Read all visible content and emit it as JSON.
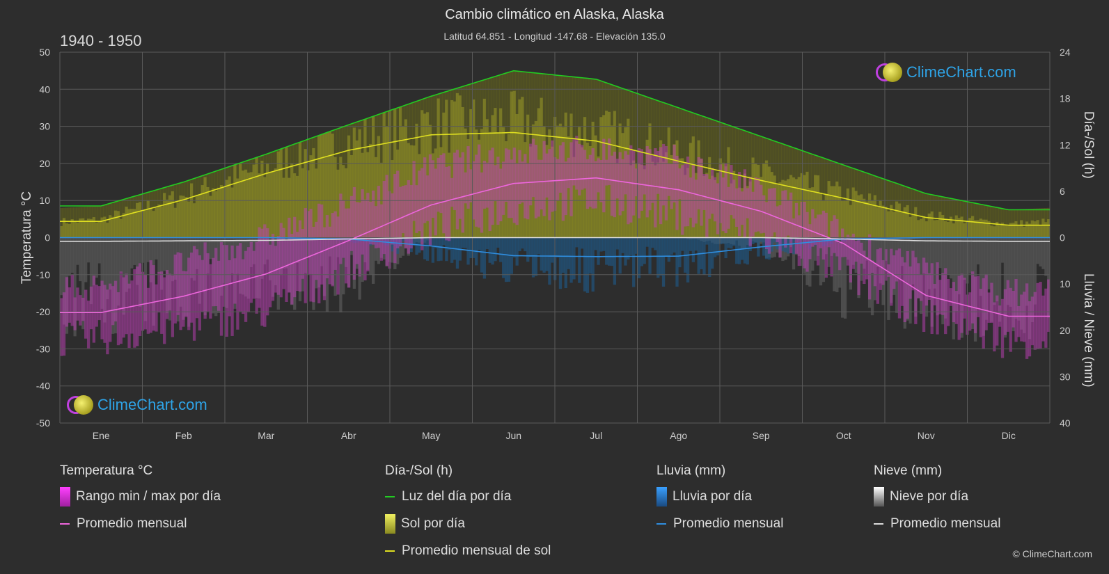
{
  "header": {
    "title": "Cambio climático en Alaska, Alaska",
    "subtitle": "Latitud 64.851 - Longitud -147.68 - Elevación 135.0",
    "period": "1940 - 1950"
  },
  "logo_text": "ClimeChart.com",
  "copyright": "© ClimeChart.com",
  "chart_data": {
    "type": "line",
    "x_categories": [
      "Ene",
      "Feb",
      "Mar",
      "Abr",
      "May",
      "Jun",
      "Jul",
      "Ago",
      "Sep",
      "Oct",
      "Nov",
      "Dic"
    ],
    "y_left": {
      "label": "Temperatura °C",
      "ylim": [
        -50,
        50
      ],
      "ticks": [
        50,
        40,
        30,
        20,
        10,
        0,
        -10,
        -20,
        -30,
        -40,
        -50
      ]
    },
    "y_right_top": {
      "label": "Día-/Sol (h)",
      "ylim": [
        0,
        24
      ],
      "ticks": [
        24,
        18,
        12,
        6,
        0
      ]
    },
    "y_right_bottom": {
      "label": "Lluvia / Nieve (mm)",
      "ylim": [
        0,
        40
      ],
      "ticks": [
        10,
        20,
        30,
        40
      ]
    },
    "grid": true,
    "series": [
      {
        "name": "Luz del día por día",
        "axis": "sun_h",
        "color": "#22cc22",
        "values": [
          4.1,
          7.2,
          10.8,
          14.6,
          18.3,
          21.6,
          20.5,
          16.8,
          13.1,
          9.4,
          5.7,
          3.6
        ]
      },
      {
        "name": "Promedio mensual de sol",
        "axis": "sun_h",
        "color": "#e0e020",
        "values": [
          2.1,
          4.9,
          8.3,
          11.3,
          13.3,
          13.6,
          12.5,
          9.9,
          7.4,
          5.1,
          2.6,
          1.6
        ]
      },
      {
        "name": "Promedio mensual",
        "axis": "temp_c",
        "group": "Temperatura °C",
        "color": "#ee66dd",
        "values": [
          -20.2,
          -15.8,
          -9.8,
          -0.8,
          8.8,
          14.6,
          16.1,
          12.9,
          7.1,
          -1.6,
          -15.6,
          -21.2
        ]
      },
      {
        "name": "Promedio mensual",
        "axis": "precip_mm",
        "group": "Lluvia (mm)",
        "color": "#2f8ee0",
        "values": [
          0.0,
          0.0,
          0.0,
          0.3,
          1.8,
          3.9,
          4.1,
          4.0,
          2.0,
          0.3,
          0.0,
          0.0
        ]
      },
      {
        "name": "Promedio mensual",
        "axis": "precip_mm",
        "group": "Nieve (mm)",
        "color": "#dddddd",
        "values": [
          0.8,
          0.7,
          0.6,
          0.3,
          0.0,
          0.0,
          0.0,
          0.0,
          0.0,
          0.3,
          0.7,
          0.8
        ]
      }
    ],
    "ranges": {
      "temp_max_c": [
        -13,
        -7,
        0,
        9,
        19,
        23,
        24,
        21,
        13,
        1,
        -9,
        -15
      ],
      "temp_min_c": [
        -27,
        -24,
        -20,
        -9,
        2,
        8,
        10,
        6,
        0,
        -9,
        -21,
        -28
      ],
      "sun_h": [
        2.1,
        4.9,
        8.3,
        11.3,
        13.3,
        13.6,
        12.5,
        9.9,
        7.4,
        5.1,
        2.6,
        1.6
      ],
      "rain_mm": [
        0,
        0,
        0,
        0.5,
        3,
        6,
        7,
        6,
        3,
        0.5,
        0,
        0
      ],
      "snow_mm": [
        12,
        11,
        10,
        9,
        0,
        0,
        0,
        0,
        2,
        10,
        12,
        13
      ]
    }
  },
  "legend": {
    "temp": {
      "title": "Temperatura °C",
      "range": "Rango min / max por día",
      "avg": "Promedio mensual"
    },
    "sun": {
      "title": "Día-/Sol (h)",
      "daylight": "Luz del día por día",
      "sun_day": "Sol por día",
      "sun_avg": "Promedio mensual de sol"
    },
    "rain": {
      "title": "Lluvia (mm)",
      "rain_day": "Lluvia por día",
      "avg": "Promedio mensual"
    },
    "snow": {
      "title": "Nieve (mm)",
      "snow_day": "Nieve por día",
      "avg": "Promedio mensual"
    }
  },
  "colors": {
    "background": "#2d2d2d",
    "grid": "#555555",
    "daylight": "#22cc22",
    "sun": "#e0e020",
    "temp": "#ee66dd",
    "rain": "#2f8ee0",
    "snow": "#dddddd",
    "temp_range": "#d040c8",
    "sun_fill": "#8a8a20"
  }
}
